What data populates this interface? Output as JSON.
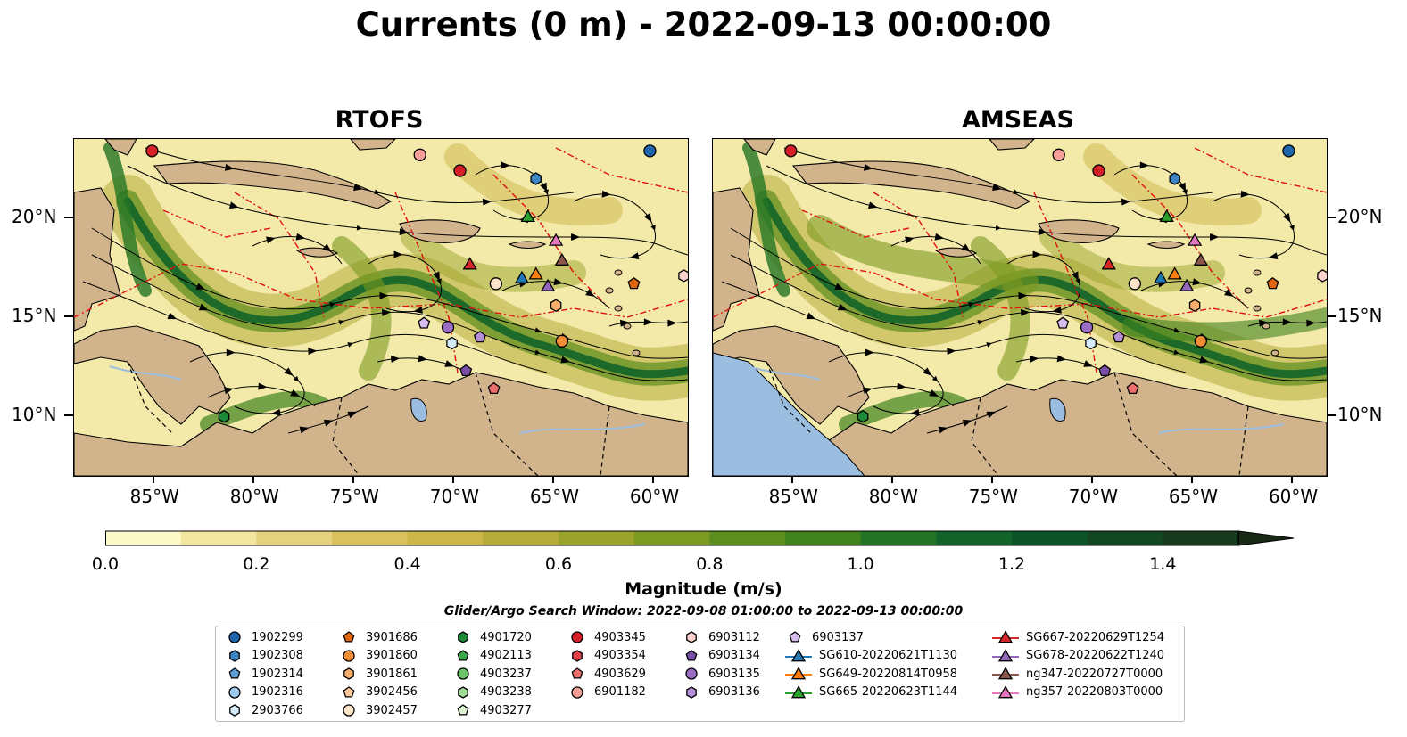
{
  "title": "Currents (0 m) - 2022-09-13 00:00:00",
  "panels": [
    {
      "title": "RTOFS"
    },
    {
      "title": "AMSEAS"
    }
  ],
  "axes": {
    "x_ticks": [
      "85°W",
      "80°W",
      "75°W",
      "70°W",
      "65°W",
      "60°W"
    ],
    "y_ticks": [
      "20°N",
      "15°N",
      "10°N"
    ],
    "lon_range": [
      -89,
      -58.3
    ],
    "lat_range": [
      7,
      24
    ]
  },
  "colorbar": {
    "label": "Magnitude (m/s)",
    "ticks": [
      "0.0",
      "0.2",
      "0.4",
      "0.6",
      "0.8",
      "1.0",
      "1.2",
      "1.4"
    ],
    "range": [
      0,
      1.5
    ],
    "extend": "max",
    "colors": [
      "#fdf9c8",
      "#f2e6a1",
      "#e5d27e",
      "#d9c15e",
      "#cbb64a",
      "#b5ab3b",
      "#9aa32c",
      "#7c9a22",
      "#5c8e1e",
      "#3f821e",
      "#237424",
      "#126329",
      "#0c5427",
      "#134623",
      "#17391d",
      "#182a16"
    ]
  },
  "search_window": "Glider/Argo Search Window: 2022-09-08 01:00:00 to 2022-09-13 00:00:00",
  "legend": {
    "columns": [
      [
        {
          "label": "1902299",
          "marker": "circle",
          "color": "#1f66ad"
        },
        {
          "label": "1902308",
          "marker": "hexagon",
          "color": "#3d86c4"
        },
        {
          "label": "1902314",
          "marker": "pentagon",
          "color": "#5c9fd6"
        },
        {
          "label": "1902316",
          "marker": "circle",
          "color": "#9dc9ec"
        },
        {
          "label": "2903766",
          "marker": "hexagon",
          "color": "#d6ebfa"
        }
      ],
      [
        {
          "label": "3901686",
          "marker": "pentagon",
          "color": "#e0650f"
        },
        {
          "label": "3901860",
          "marker": "circle",
          "color": "#f28d3a"
        },
        {
          "label": "3901861",
          "marker": "hexagon",
          "color": "#f7ad6b"
        },
        {
          "label": "3902456",
          "marker": "pentagon",
          "color": "#fbc99c"
        },
        {
          "label": "3902457",
          "marker": "circle",
          "color": "#fde3c8"
        }
      ],
      [
        {
          "label": "4901720",
          "marker": "hexagon",
          "color": "#1c8a36"
        },
        {
          "label": "4902113",
          "marker": "pentagon",
          "color": "#3aa64b"
        },
        {
          "label": "4903237",
          "marker": "circle",
          "color": "#6cc46a"
        },
        {
          "label": "4903238",
          "marker": "hexagon",
          "color": "#a2dc98"
        },
        {
          "label": "4903277",
          "marker": "pentagon",
          "color": "#daf2d0"
        }
      ],
      [
        {
          "label": "4903345",
          "marker": "circle",
          "color": "#d62028"
        },
        {
          "label": "4903354",
          "marker": "hexagon",
          "color": "#e34048"
        },
        {
          "label": "4903629",
          "marker": "pentagon",
          "color": "#ef6f6f"
        },
        {
          "label": "6901182",
          "marker": "circle",
          "color": "#f7a09a"
        }
      ],
      [
        {
          "label": "6903112",
          "marker": "hexagon",
          "color": "#fcd0cb"
        },
        {
          "label": "6903134",
          "marker": "pentagon",
          "color": "#7b4ea8"
        },
        {
          "label": "6903135",
          "marker": "circle",
          "color": "#9a6cc4"
        },
        {
          "label": "6903136",
          "marker": "hexagon",
          "color": "#b590d9"
        }
      ],
      [
        {
          "label": "6903137",
          "marker": "pentagon",
          "color": "#d6bdee"
        },
        {
          "label": "SG610-20220621T1130",
          "marker": "triangle-line",
          "color": "#1f77b4"
        },
        {
          "label": "SG649-20220814T0958",
          "marker": "triangle-line",
          "color": "#ff7f0e"
        },
        {
          "label": "SG665-20220623T1144",
          "marker": "triangle-line",
          "color": "#2ca02c"
        }
      ],
      [
        {
          "label": "SG667-20220629T1254",
          "marker": "triangle-line",
          "color": "#d62728"
        },
        {
          "label": "SG678-20220622T1240",
          "marker": "triangle-line",
          "color": "#9467bd"
        },
        {
          "label": "ng347-20220727T0000",
          "marker": "triangle-line",
          "color": "#8c564b"
        },
        {
          "label": "ng357-20220803T0000",
          "marker": "triangle-line",
          "color": "#e377c2"
        }
      ]
    ]
  },
  "points": [
    {
      "lon": -85.1,
      "lat": 23.4,
      "marker": "circle",
      "color": "#d62028"
    },
    {
      "lon": -60.2,
      "lat": 23.4,
      "marker": "circle",
      "color": "#1f66ad"
    },
    {
      "lon": -71.7,
      "lat": 23.2,
      "marker": "circle",
      "color": "#f7a09a"
    },
    {
      "lon": -69.7,
      "lat": 22.4,
      "marker": "circle",
      "color": "#d62028"
    },
    {
      "lon": -65.9,
      "lat": 22.0,
      "marker": "hexagon",
      "color": "#3d86c4"
    },
    {
      "lon": -66.3,
      "lat": 20.1,
      "marker": "triangle",
      "color": "#2ca02c"
    },
    {
      "lon": -64.9,
      "lat": 18.9,
      "marker": "triangle",
      "color": "#e377c2"
    },
    {
      "lon": -64.6,
      "lat": 17.9,
      "marker": "triangle",
      "color": "#8c564b"
    },
    {
      "lon": -69.2,
      "lat": 17.7,
      "marker": "triangle",
      "color": "#d62728"
    },
    {
      "lon": -65.9,
      "lat": 17.2,
      "marker": "triangle",
      "color": "#ff7f0e"
    },
    {
      "lon": -66.6,
      "lat": 17.0,
      "marker": "triangle",
      "color": "#1f77b4"
    },
    {
      "lon": -65.3,
      "lat": 16.6,
      "marker": "triangle",
      "color": "#9467bd"
    },
    {
      "lon": -67.9,
      "lat": 16.7,
      "marker": "circle",
      "color": "#fde3c8"
    },
    {
      "lon": -58.5,
      "lat": 17.1,
      "marker": "hexagon",
      "color": "#fcd0cb"
    },
    {
      "lon": -61.0,
      "lat": 16.7,
      "marker": "pentagon",
      "color": "#e0650f"
    },
    {
      "lon": -64.9,
      "lat": 15.6,
      "marker": "hexagon",
      "color": "#f7ad6b"
    },
    {
      "lon": -71.5,
      "lat": 14.7,
      "marker": "pentagon",
      "color": "#d6bdee"
    },
    {
      "lon": -70.3,
      "lat": 14.5,
      "marker": "circle",
      "color": "#9a6cc4"
    },
    {
      "lon": -68.7,
      "lat": 14.0,
      "marker": "pentagon",
      "color": "#b590d9"
    },
    {
      "lon": -70.1,
      "lat": 13.7,
      "marker": "hexagon",
      "color": "#d6ebfa"
    },
    {
      "lon": -64.6,
      "lat": 13.8,
      "marker": "circle",
      "color": "#f28d3a"
    },
    {
      "lon": -69.4,
      "lat": 12.3,
      "marker": "pentagon",
      "color": "#7b4ea8"
    },
    {
      "lon": -68.0,
      "lat": 11.4,
      "marker": "pentagon",
      "color": "#ef6f6f"
    },
    {
      "lon": -81.5,
      "lat": 10.0,
      "marker": "hexagon",
      "color": "#1c8a36"
    }
  ]
}
